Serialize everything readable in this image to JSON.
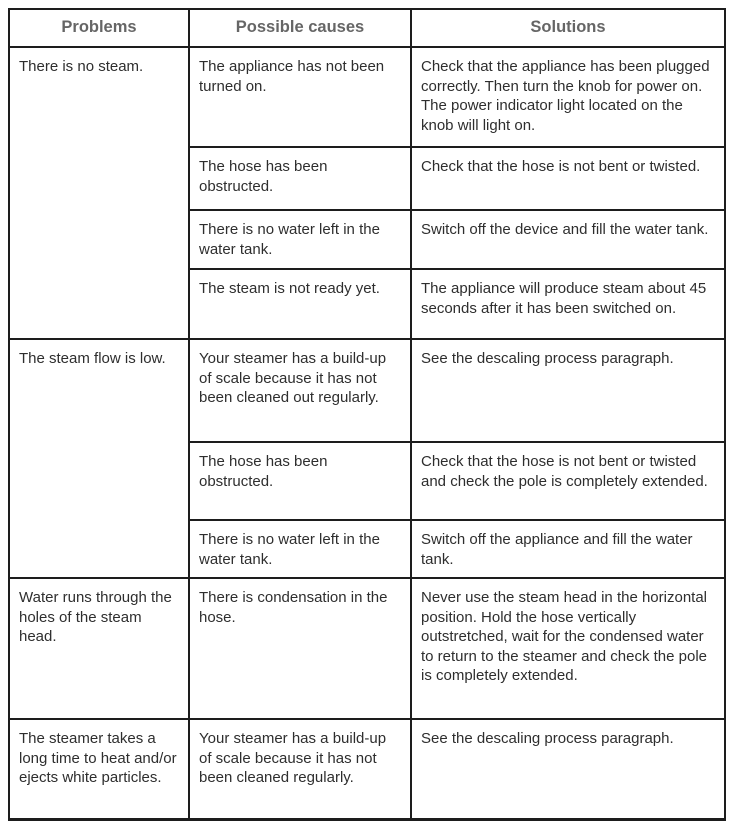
{
  "table": {
    "headers": [
      "Problems",
      "Possible causes",
      "Solutions"
    ],
    "groups": [
      {
        "problem": "There is no steam.",
        "entries": [
          {
            "cause": "The appliance has not been turned on.",
            "solution": "Check that the appliance has been plugged correctly. Then turn the knob for power on. The power indicator light located on the knob will light on."
          },
          {
            "cause": "The hose has been obstructed.",
            "solution": "Check that the hose is not bent or twisted."
          },
          {
            "cause": "There is no water left in the water tank.",
            "solution": "Switch off the device and fill the water tank."
          },
          {
            "cause": "The steam is not ready yet.",
            "solution": "The appliance will produce steam about 45 seconds after it has been switched on."
          }
        ]
      },
      {
        "problem": "The steam flow is low.",
        "entries": [
          {
            "cause": "Your steamer has a build-up of scale because it has not been cleaned out regularly.",
            "solution": "See the descaling process paragraph."
          },
          {
            "cause": "The hose has been obstructed.",
            "solution": "Check that the hose is not bent or twisted and check the pole is completely extended."
          },
          {
            "cause": "There is no water left in the water tank.",
            "solution": "Switch off the appliance and fill the water tank."
          }
        ]
      },
      {
        "problem": "Water runs through the holes of the steam head.",
        "entries": [
          {
            "cause": "There is condensation in the hose.",
            "solution": "Never use the steam head in the horizontal position. Hold the hose vertically outstretched, wait for the condensed water to return to the steamer and check the pole is completely extended."
          }
        ]
      },
      {
        "problem": "The steamer takes a long time to heat and/or ejects white particles.",
        "entries": [
          {
            "cause": "Your steamer has a build-up of scale because it has not been cleaned regularly.",
            "solution": "See the descaling process paragraph."
          }
        ]
      }
    ]
  },
  "colors": {
    "border": "#1d1d1d",
    "header_text": "#666666",
    "body_text": "#2e2e2e",
    "background": "#ffffff"
  }
}
